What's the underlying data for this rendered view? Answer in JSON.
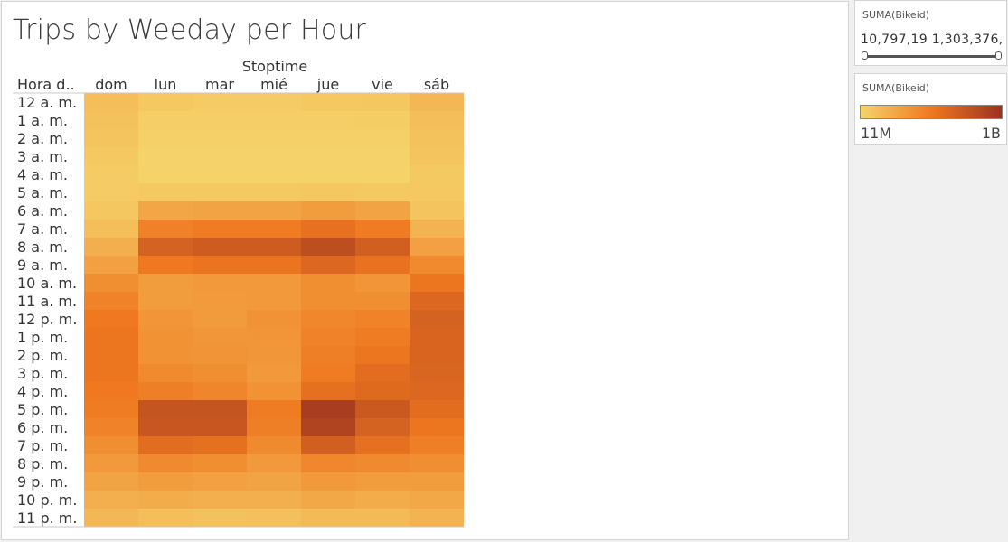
{
  "chart_title": "Trips by Weeday per Hour",
  "chart_data": {
    "type": "heatmap",
    "title": "Trips by Weeday per Hour",
    "column_group_label": "Stoptime",
    "row_header_label": "Hora d..",
    "columns": [
      "dom",
      "lun",
      "mar",
      "mié",
      "jue",
      "vie",
      "sáb"
    ],
    "rows": [
      "12 a. m.",
      "1 a. m.",
      "2 a. m.",
      "3 a. m.",
      "4 a. m.",
      "5 a. m.",
      "6 a. m.",
      "7 a. m.",
      "8 a. m.",
      "9 a. m.",
      "10 a. m.",
      "11 a. m.",
      "12 p. m.",
      "1 p. m.",
      "2 p. m.",
      "3 p. m.",
      "4 p. m.",
      "5 p. m.",
      "6 p. m.",
      "7 p. m.",
      "8 p. m.",
      "9 p. m.",
      "10 p. m.",
      "11 p. m."
    ],
    "values": [
      [
        0.12,
        0.06,
        0.05,
        0.05,
        0.06,
        0.07,
        0.15
      ],
      [
        0.1,
        0.03,
        0.03,
        0.03,
        0.03,
        0.04,
        0.12
      ],
      [
        0.08,
        0.02,
        0.02,
        0.02,
        0.02,
        0.02,
        0.1
      ],
      [
        0.06,
        0.01,
        0.01,
        0.01,
        0.01,
        0.01,
        0.08
      ],
      [
        0.05,
        0.01,
        0.01,
        0.01,
        0.01,
        0.01,
        0.06
      ],
      [
        0.05,
        0.06,
        0.06,
        0.06,
        0.07,
        0.06,
        0.06
      ],
      [
        0.07,
        0.25,
        0.26,
        0.26,
        0.3,
        0.26,
        0.08
      ],
      [
        0.12,
        0.45,
        0.48,
        0.48,
        0.55,
        0.48,
        0.18
      ],
      [
        0.2,
        0.66,
        0.7,
        0.7,
        0.8,
        0.68,
        0.28
      ],
      [
        0.28,
        0.5,
        0.53,
        0.53,
        0.62,
        0.54,
        0.4
      ],
      [
        0.38,
        0.3,
        0.32,
        0.32,
        0.38,
        0.34,
        0.52
      ],
      [
        0.44,
        0.3,
        0.31,
        0.32,
        0.38,
        0.38,
        0.62
      ],
      [
        0.5,
        0.34,
        0.31,
        0.36,
        0.42,
        0.44,
        0.66
      ],
      [
        0.52,
        0.36,
        0.33,
        0.34,
        0.44,
        0.48,
        0.64
      ],
      [
        0.52,
        0.36,
        0.35,
        0.33,
        0.46,
        0.52,
        0.64
      ],
      [
        0.52,
        0.4,
        0.38,
        0.32,
        0.48,
        0.58,
        0.63
      ],
      [
        0.5,
        0.46,
        0.43,
        0.36,
        0.56,
        0.6,
        0.62
      ],
      [
        0.48,
        0.76,
        0.76,
        0.48,
        0.92,
        0.72,
        0.58
      ],
      [
        0.44,
        0.74,
        0.74,
        0.46,
        0.88,
        0.66,
        0.52
      ],
      [
        0.38,
        0.58,
        0.56,
        0.4,
        0.68,
        0.56,
        0.46
      ],
      [
        0.32,
        0.4,
        0.38,
        0.32,
        0.42,
        0.4,
        0.38
      ],
      [
        0.26,
        0.3,
        0.28,
        0.26,
        0.32,
        0.3,
        0.3
      ],
      [
        0.2,
        0.22,
        0.2,
        0.2,
        0.24,
        0.22,
        0.24
      ],
      [
        0.15,
        0.12,
        0.1,
        0.11,
        0.14,
        0.14,
        0.18
      ]
    ],
    "color_low": "#f5d46b",
    "color_mid": "#ef7820",
    "color_high": "#9c3220"
  },
  "filter_card": {
    "title": "SUMA(Bikeid)",
    "range_text": "10,797,19 1,303,376,"
  },
  "legend_card": {
    "title": "SUMA(Bikeid)",
    "min_label": "11M",
    "max_label": "1B"
  }
}
